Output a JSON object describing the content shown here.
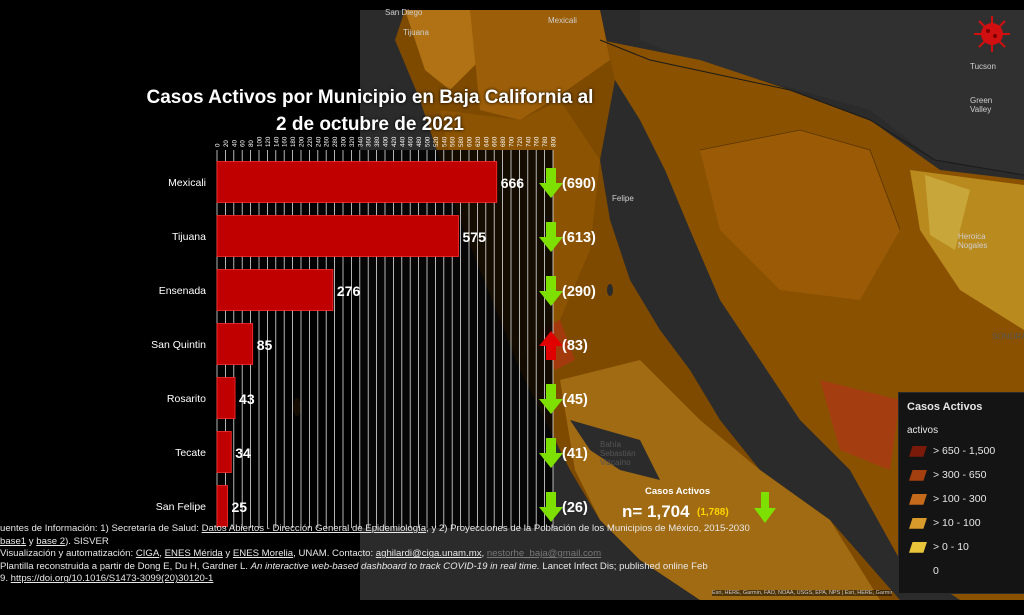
{
  "chart_data": {
    "type": "bar",
    "orientation": "horizontal",
    "title_lines": [
      "Casos Activos por Municipio en Baja California al",
      "2 de octubre de 2021"
    ],
    "categories": [
      "Mexicali",
      "Tijuana",
      "Ensenada",
      "San Quintin",
      "Rosarito",
      "Tecate",
      "San Felipe"
    ],
    "values": [
      666,
      575,
      276,
      85,
      43,
      34,
      25
    ],
    "previous_labels": [
      "(690)",
      "(613)",
      "(290)",
      "(83)",
      "(45)",
      "(41)",
      "(26)"
    ],
    "trend": [
      "down",
      "down",
      "down",
      "up",
      "down",
      "down",
      "down"
    ],
    "xlim": [
      0,
      800
    ],
    "tick_labels": [
      "0",
      "20",
      "40",
      "60",
      "80",
      "100",
      "120",
      "140",
      "160",
      "180",
      "200",
      "220",
      "240",
      "260",
      "280",
      "300",
      "320",
      "340",
      "360",
      "380",
      "400",
      "420",
      "440",
      "460",
      "480",
      "500",
      "520",
      "540",
      "560",
      "580",
      "600",
      "620",
      "640",
      "660",
      "680",
      "700",
      "720",
      "740",
      "760",
      "780",
      "800"
    ],
    "grid": true,
    "bar_color": "#c00000"
  },
  "summary": {
    "label": "Casos Activos",
    "total": "n= 1,704",
    "previous": "(1,788)",
    "trend": "down"
  },
  "legend": {
    "title": "Casos Activos",
    "subtitle": "activos",
    "items": [
      {
        "label": "> 650 - 1,500",
        "color": "#7a1a0a"
      },
      {
        "label": "> 300 - 650",
        "color": "#a4400f"
      },
      {
        "label": "> 100 - 300",
        "color": "#c46a1a"
      },
      {
        "label": "> 10 - 100",
        "color": "#d89a2a"
      },
      {
        "label": "> 0 - 10",
        "color": "#e8c43a"
      },
      {
        "label": "0",
        "color": "#141414"
      }
    ]
  },
  "map_labels": {
    "san_diego": "San Diego",
    "tijuana": "Tijuana",
    "mexicali": "Mexicali",
    "tucson": "Tucson",
    "green_valley": "Green Valley",
    "felipe": "Felipe",
    "nogales": "Heroica Nogales",
    "sonora": "SONORA",
    "bahia": "Bahía Sebastián Vizcaíno"
  },
  "footer": {
    "line1_a": "uentes de Información: 1) Secretaría de Salud: ",
    "line1_link": "Datos Abiertos - Dirección General de Epidemiología",
    "line1_b": ", y 2) Proyecciones de la Población de los Municipios de México, 2015-2030",
    "line2_link1": "base1",
    "line2_mid": " y ",
    "line2_link2": "base 2",
    "line2_end": "). SISVER",
    "line3_a": "Visualización y automatización: ",
    "line3_l1": "CIGA",
    "line3_sep1": ", ",
    "line3_l2": "ENES Mérida",
    "line3_sep2": " y ",
    "line3_l3": "ENES Morelia",
    "line3_b": ", UNAM. Contacto: ",
    "line3_l4": "aghilardi@ciga.unam.mx",
    "line3_sep3": ", ",
    "line3_l5": "nestorhe_baja@gmail.com",
    "line4_a": "Plantilla reconstruida a partir de Dong E, Du H, Gardner L. ",
    "line4_i": "An interactive web-based dashboard to track COVID-19 in real time.",
    "line4_b": " Lancet Infect Dis; published online Feb",
    "line5_a": "9. ",
    "line5_link": "https://doi.org/10.1016/S1473-3099(20)30120-1"
  },
  "attribution": "Esri, HERE, Garmin, FAO, NOAA, USGS, EPA, NPS | Esri, HERE, Garmin"
}
